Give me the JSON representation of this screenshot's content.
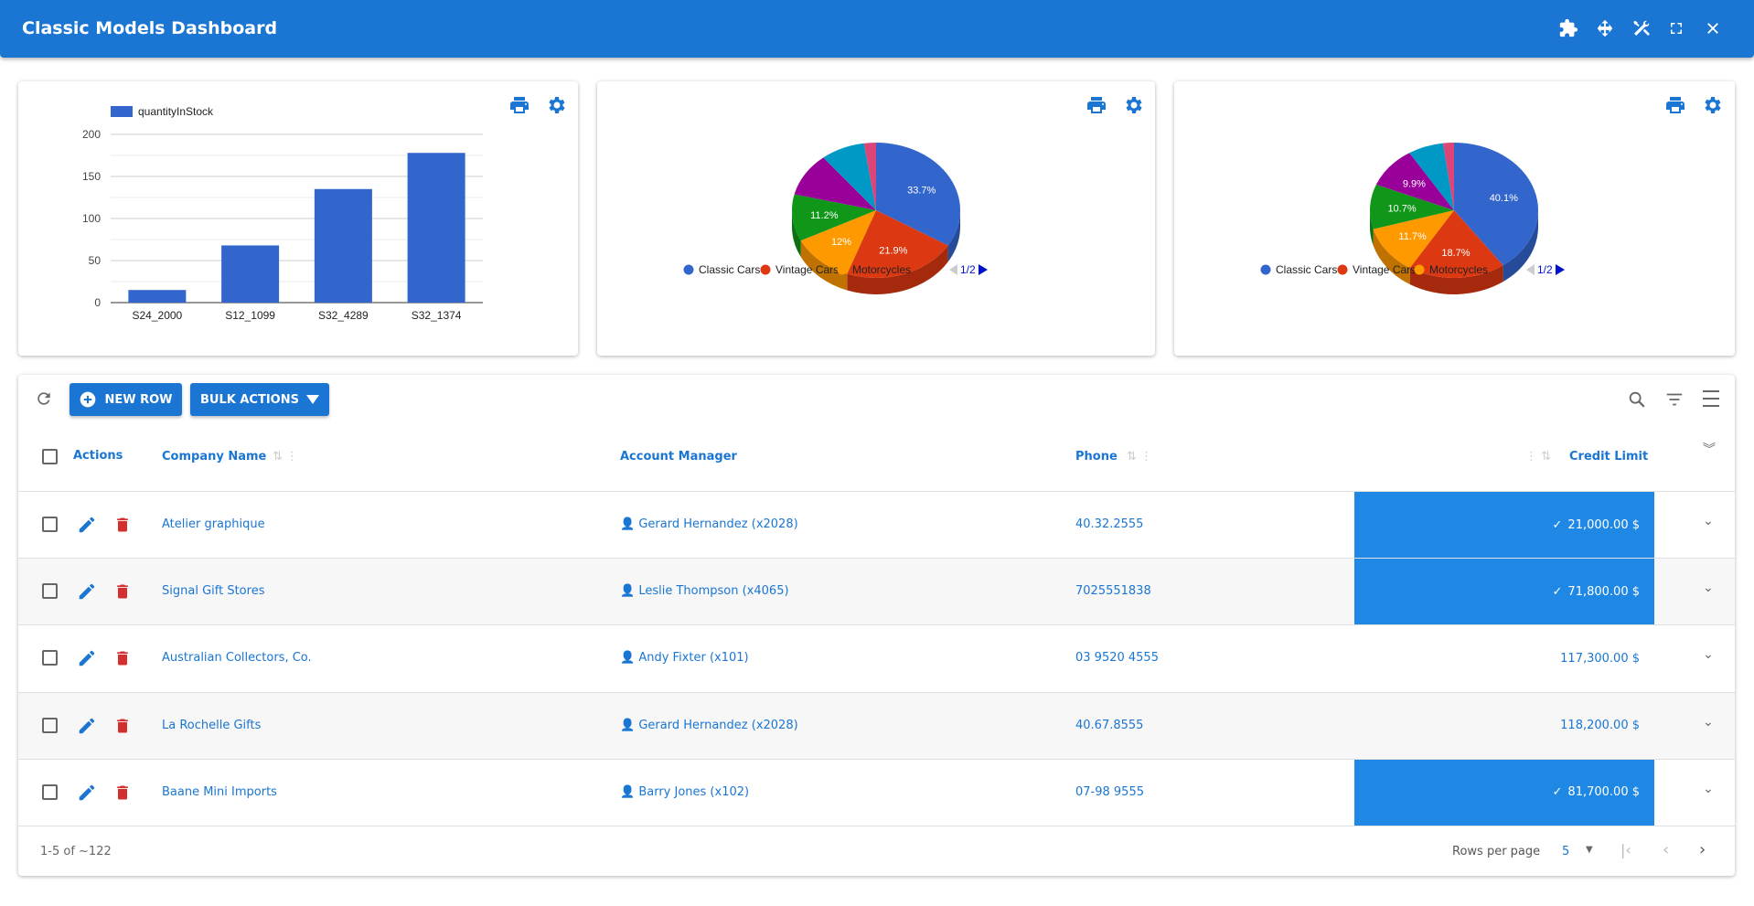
{
  "header": {
    "title": "Classic Models Dashboard",
    "icons": [
      "puzzle-icon",
      "move-icon",
      "tools-icon",
      "fullscreen-icon",
      "close-icon"
    ]
  },
  "colors": {
    "primary": "#1a76d2",
    "highlight": "#1f88e5",
    "delete": "#d32f2f"
  },
  "chart_data": [
    {
      "type": "bar",
      "categories": [
        "S24_2000",
        "S12_1099",
        "S32_4289",
        "S32_1374"
      ],
      "series": [
        {
          "name": "quantityInStock",
          "values": [
            15,
            68,
            135,
            178
          ]
        }
      ],
      "ylim": [
        0,
        200
      ],
      "yticks": [
        0,
        50,
        100,
        150,
        200
      ],
      "grid": true,
      "legend": "top-left",
      "color": "#3366cc"
    },
    {
      "type": "pie",
      "is3D": true,
      "values": [
        33.7,
        21.9,
        12,
        11.2,
        10.4,
        8.5,
        2.3
      ],
      "labels": [
        "33.7%",
        "21.9%",
        "12%",
        "11.2%",
        "",
        "",
        ""
      ],
      "colors": [
        "#3366cc",
        "#dc3912",
        "#ff9900",
        "#109618",
        "#990099",
        "#0099c6",
        "#dd4477"
      ],
      "legend": {
        "entries": [
          "Classic Cars",
          "Vintage Cars",
          "Motorcycles"
        ],
        "page": "1/2",
        "position": "bottom"
      }
    },
    {
      "type": "pie",
      "is3D": true,
      "values": [
        40.1,
        18.7,
        11.7,
        10.7,
        9.9,
        6.8,
        2.1
      ],
      "labels": [
        "40.1%",
        "18.7%",
        "11.7%",
        "10.7%",
        "9.9%",
        "",
        ""
      ],
      "colors": [
        "#3366cc",
        "#dc3912",
        "#ff9900",
        "#109618",
        "#990099",
        "#0099c6",
        "#dd4477"
      ],
      "legend": {
        "entries": [
          "Classic Cars",
          "Vintage Cars",
          "Motorcycles"
        ],
        "page": "1/2",
        "position": "bottom"
      }
    }
  ],
  "toolbar": {
    "new_row": "NEW ROW",
    "bulk_actions": "BULK ACTIONS"
  },
  "table": {
    "columns": {
      "actions": "Actions",
      "company": "Company Name",
      "manager": "Account Manager",
      "phone": "Phone",
      "credit": "Credit Limit"
    },
    "rows": [
      {
        "company": "Atelier graphique",
        "manager": "Gerard Hernandez (x2028)",
        "phone": "40.32.2555",
        "credit": "21,000.00 $",
        "highlight": true
      },
      {
        "company": "Signal Gift Stores",
        "manager": "Leslie Thompson (x4065)",
        "phone": "7025551838",
        "credit": "71,800.00 $",
        "highlight": true
      },
      {
        "company": "Australian Collectors, Co.",
        "manager": "Andy Fixter (x101)",
        "phone": "03 9520 4555",
        "credit": "117,300.00 $",
        "highlight": false
      },
      {
        "company": "La Rochelle Gifts",
        "manager": "Gerard Hernandez (x2028)",
        "phone": "40.67.8555",
        "credit": "118,200.00 $",
        "highlight": false
      },
      {
        "company": "Baane Mini Imports",
        "manager": "Barry Jones (x102)",
        "phone": "07-98 9555",
        "credit": "81,700.00 $",
        "highlight": true
      }
    ]
  },
  "footer": {
    "range": "1-5 of ~122",
    "rows_per_page_label": "Rows per page",
    "rows_per_page": "5"
  }
}
